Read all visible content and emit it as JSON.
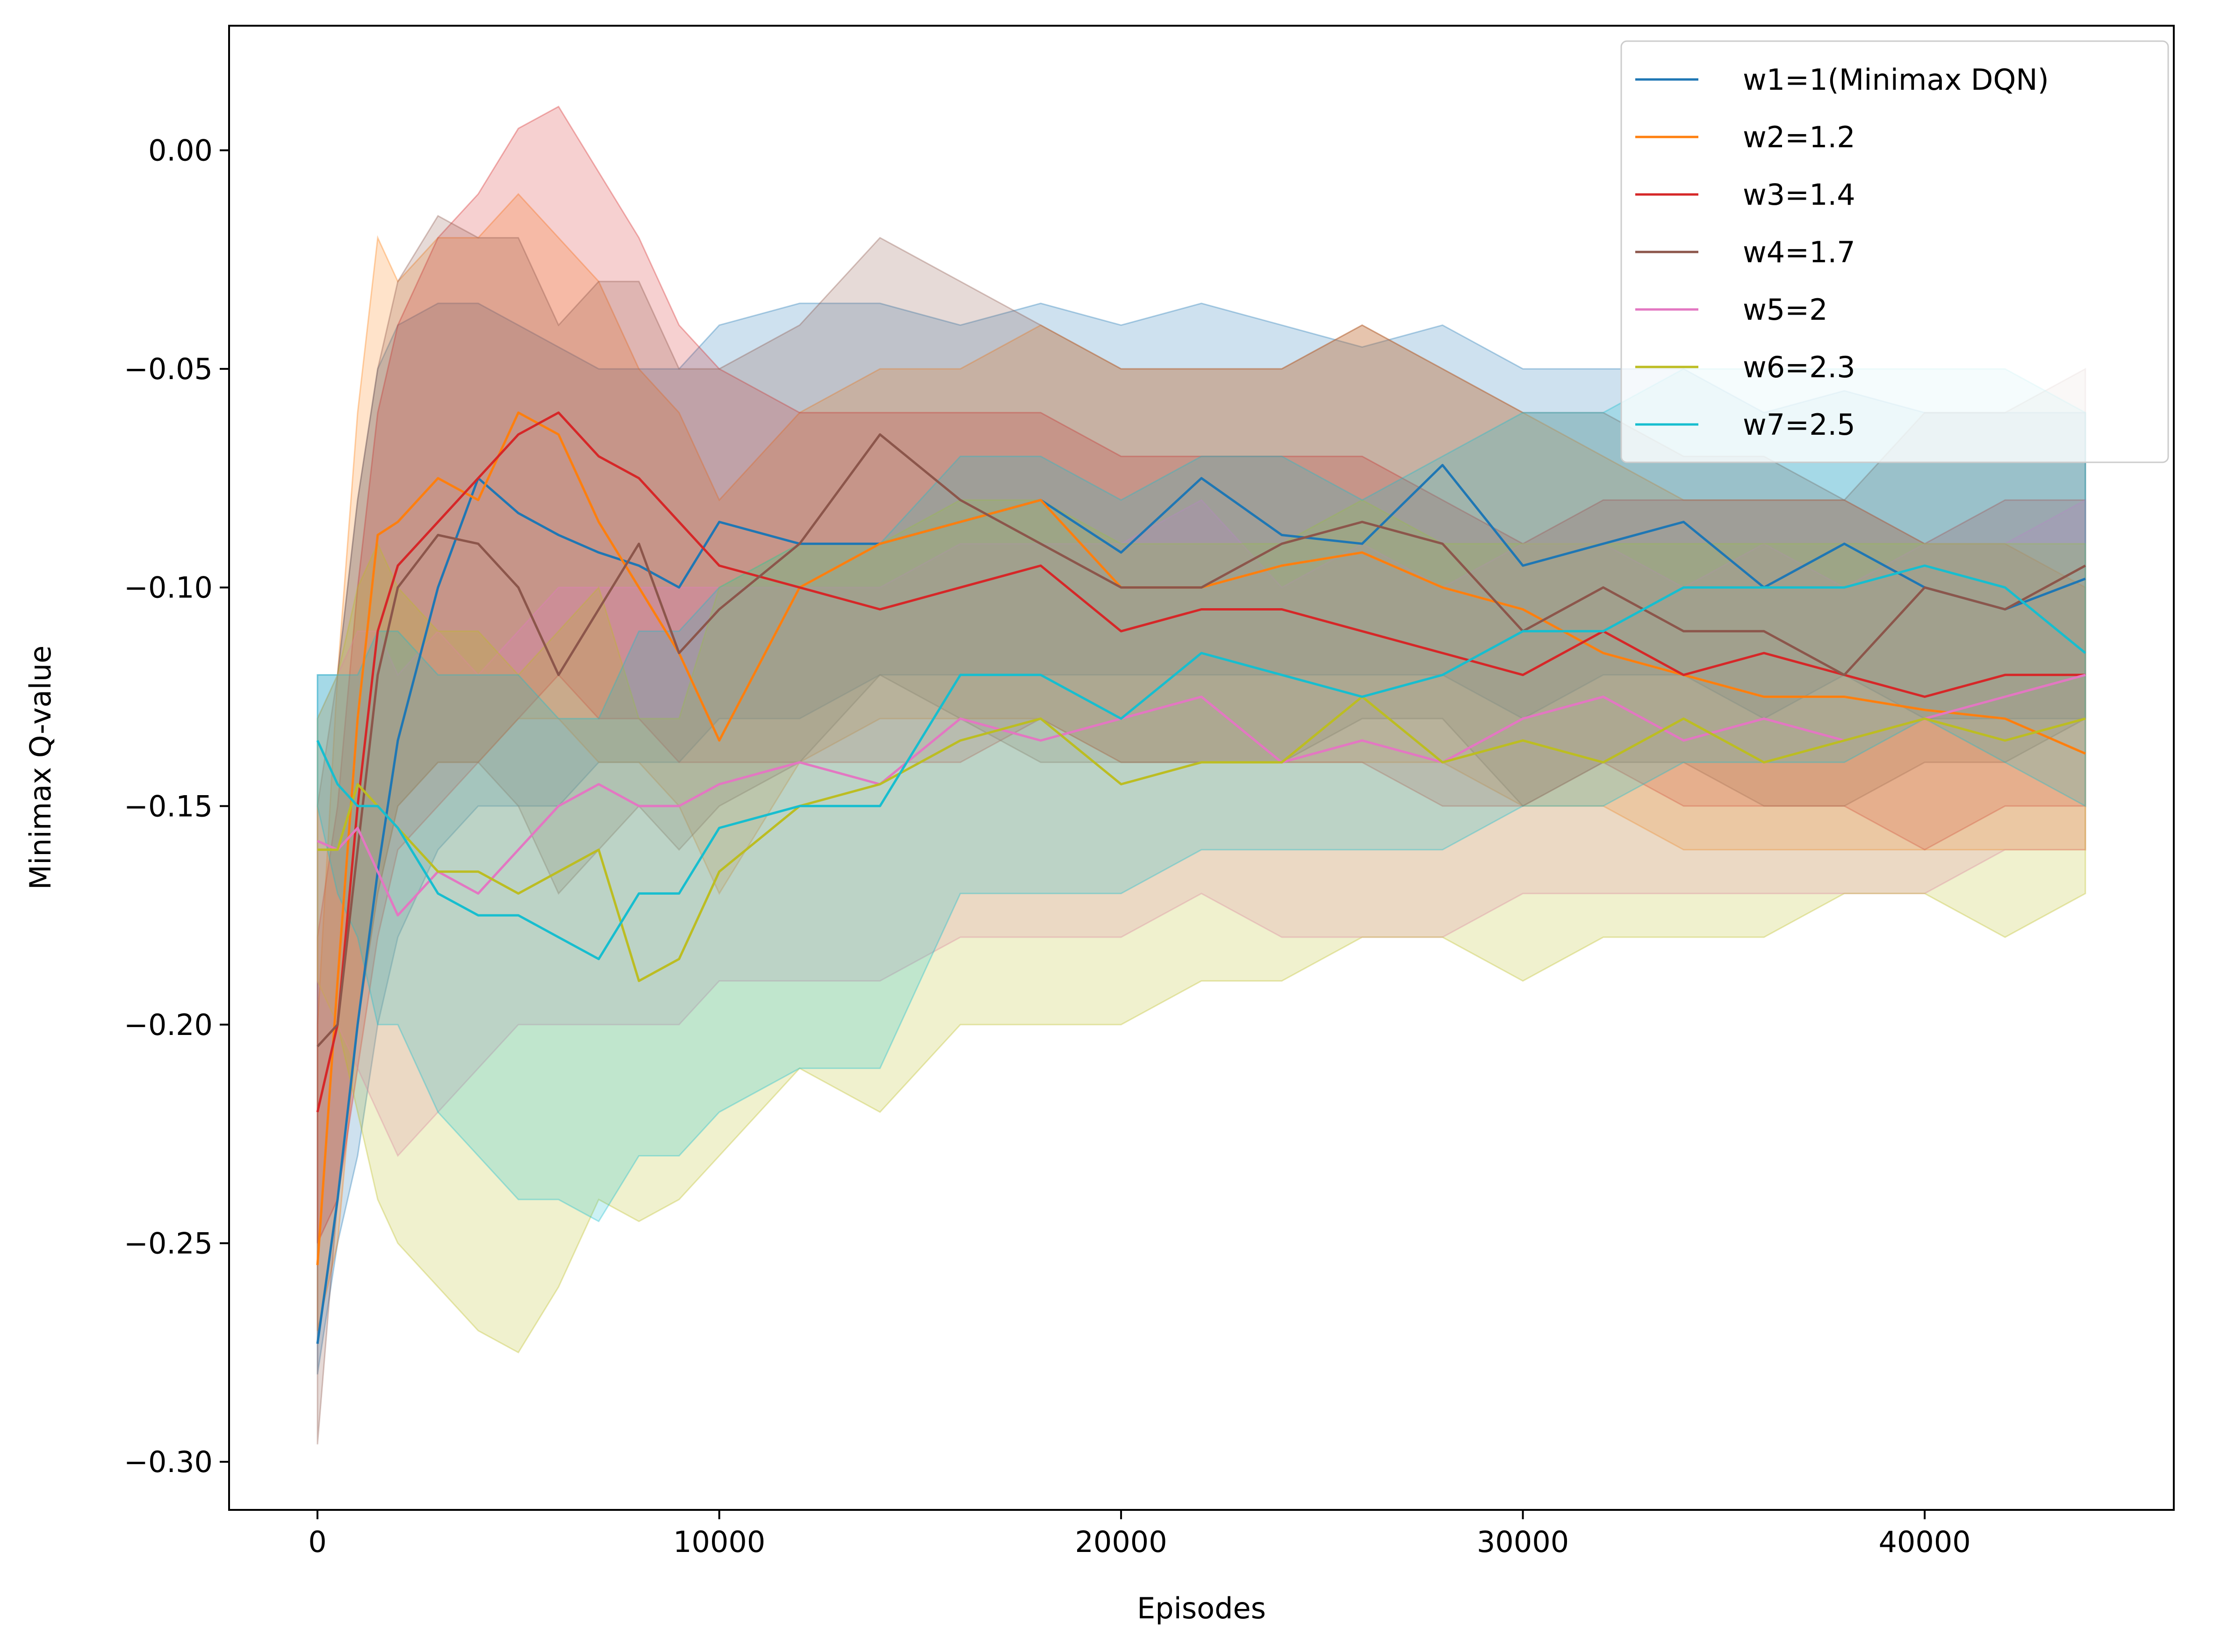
{
  "chart_data": {
    "type": "line",
    "title": "",
    "xlabel": "Episodes",
    "ylabel": "Minimax Q-value",
    "xlim": [
      -2200,
      46200
    ],
    "ylim": [
      -0.311,
      0.0285
    ],
    "xticks": [
      0,
      10000,
      20000,
      30000,
      40000
    ],
    "xtick_labels": [
      "0",
      "10000",
      "20000",
      "30000",
      "40000"
    ],
    "yticks": [
      0.0,
      -0.05,
      -0.1,
      -0.15,
      -0.2,
      -0.25,
      -0.3
    ],
    "ytick_labels": [
      "0.00",
      "−0.05",
      "−0.10",
      "−0.15",
      "−0.20",
      "−0.25",
      "−0.30"
    ],
    "grid": false,
    "legend_position": "top-right",
    "shaded_band": "approximate spread around each series mean",
    "x": [
      0,
      500,
      1000,
      1500,
      2000,
      3000,
      4000,
      5000,
      6000,
      7000,
      8000,
      9000,
      10000,
      12000,
      14000,
      16000,
      18000,
      20000,
      22000,
      24000,
      26000,
      28000,
      30000,
      32000,
      34000,
      36000,
      38000,
      40000,
      42000,
      44000
    ],
    "series": [
      {
        "name": "w1=1(Minimax DQN)",
        "color": "#1f77b4",
        "values": [
          -0.273,
          -0.24,
          -0.2,
          -0.165,
          -0.135,
          -0.1,
          -0.075,
          -0.083,
          -0.088,
          -0.092,
          -0.095,
          -0.1,
          -0.085,
          -0.09,
          -0.09,
          -0.085,
          -0.08,
          -0.092,
          -0.075,
          -0.088,
          -0.09,
          -0.072,
          -0.095,
          -0.09,
          -0.085,
          -0.1,
          -0.09,
          -0.1,
          -0.105,
          -0.098
        ],
        "lower": [
          -0.28,
          -0.25,
          -0.23,
          -0.2,
          -0.18,
          -0.16,
          -0.15,
          -0.15,
          -0.15,
          -0.14,
          -0.14,
          -0.14,
          -0.13,
          -0.13,
          -0.12,
          -0.12,
          -0.12,
          -0.12,
          -0.12,
          -0.12,
          -0.12,
          -0.12,
          -0.13,
          -0.12,
          -0.12,
          -0.13,
          -0.12,
          -0.13,
          -0.13,
          -0.13
        ],
        "upper": [
          -0.12,
          -0.12,
          -0.08,
          -0.05,
          -0.04,
          -0.035,
          -0.035,
          -0.04,
          -0.045,
          -0.05,
          -0.05,
          -0.05,
          -0.04,
          -0.035,
          -0.035,
          -0.04,
          -0.035,
          -0.04,
          -0.035,
          -0.04,
          -0.045,
          -0.04,
          -0.05,
          -0.05,
          -0.05,
          -0.06,
          -0.055,
          -0.06,
          -0.06,
          -0.06
        ]
      },
      {
        "name": "w2=1.2",
        "color": "#ff7f0e",
        "values": [
          -0.255,
          -0.19,
          -0.13,
          -0.088,
          -0.085,
          -0.075,
          -0.08,
          -0.06,
          -0.065,
          -0.085,
          -0.1,
          -0.115,
          -0.135,
          -0.1,
          -0.09,
          -0.085,
          -0.08,
          -0.1,
          -0.1,
          -0.095,
          -0.092,
          -0.1,
          -0.105,
          -0.115,
          -0.12,
          -0.125,
          -0.125,
          -0.128,
          -0.13,
          -0.138
        ],
        "lower": [
          -0.27,
          -0.25,
          -0.2,
          -0.17,
          -0.15,
          -0.14,
          -0.14,
          -0.13,
          -0.13,
          -0.14,
          -0.14,
          -0.15,
          -0.17,
          -0.14,
          -0.13,
          -0.13,
          -0.13,
          -0.14,
          -0.14,
          -0.14,
          -0.14,
          -0.14,
          -0.15,
          -0.15,
          -0.16,
          -0.16,
          -0.16,
          -0.16,
          -0.16,
          -0.16
        ],
        "upper": [
          -0.2,
          -0.12,
          -0.06,
          -0.02,
          -0.03,
          -0.02,
          -0.02,
          -0.01,
          -0.02,
          -0.03,
          -0.05,
          -0.06,
          -0.08,
          -0.06,
          -0.05,
          -0.05,
          -0.04,
          -0.05,
          -0.05,
          -0.05,
          -0.04,
          -0.05,
          -0.06,
          -0.07,
          -0.08,
          -0.08,
          -0.08,
          -0.09,
          -0.09,
          -0.1
        ]
      },
      {
        "name": "w3=1.4",
        "color": "#d62728",
        "values": [
          -0.22,
          -0.2,
          -0.15,
          -0.11,
          -0.095,
          -0.085,
          -0.075,
          -0.065,
          -0.06,
          -0.07,
          -0.075,
          -0.085,
          -0.095,
          -0.1,
          -0.105,
          -0.1,
          -0.095,
          -0.11,
          -0.105,
          -0.105,
          -0.11,
          -0.115,
          -0.12,
          -0.11,
          -0.12,
          -0.115,
          -0.12,
          -0.125,
          -0.12,
          -0.12
        ],
        "lower": [
          -0.25,
          -0.24,
          -0.21,
          -0.18,
          -0.16,
          -0.15,
          -0.14,
          -0.13,
          -0.12,
          -0.13,
          -0.13,
          -0.14,
          -0.14,
          -0.14,
          -0.14,
          -0.14,
          -0.13,
          -0.14,
          -0.14,
          -0.14,
          -0.14,
          -0.15,
          -0.15,
          -0.14,
          -0.15,
          -0.15,
          -0.15,
          -0.16,
          -0.15,
          -0.15
        ],
        "upper": [
          -0.18,
          -0.15,
          -0.1,
          -0.06,
          -0.04,
          -0.02,
          -0.01,
          0.005,
          0.01,
          -0.005,
          -0.02,
          -0.04,
          -0.05,
          -0.06,
          -0.06,
          -0.06,
          -0.06,
          -0.07,
          -0.07,
          -0.07,
          -0.07,
          -0.08,
          -0.09,
          -0.08,
          -0.08,
          -0.08,
          -0.08,
          -0.09,
          -0.08,
          -0.08
        ]
      },
      {
        "name": "w4=1.7",
        "color": "#8c564b",
        "values": [
          -0.205,
          -0.2,
          -0.16,
          -0.12,
          -0.1,
          -0.088,
          -0.09,
          -0.1,
          -0.12,
          -0.105,
          -0.09,
          -0.115,
          -0.105,
          -0.09,
          -0.065,
          -0.08,
          -0.09,
          -0.1,
          -0.1,
          -0.09,
          -0.085,
          -0.09,
          -0.11,
          -0.1,
          -0.11,
          -0.11,
          -0.12,
          -0.1,
          -0.105,
          -0.095
        ],
        "lower": [
          -0.296,
          -0.24,
          -0.2,
          -0.17,
          -0.15,
          -0.14,
          -0.14,
          -0.15,
          -0.17,
          -0.16,
          -0.15,
          -0.16,
          -0.15,
          -0.14,
          -0.12,
          -0.13,
          -0.14,
          -0.14,
          -0.14,
          -0.14,
          -0.13,
          -0.13,
          -0.15,
          -0.14,
          -0.14,
          -0.15,
          -0.15,
          -0.14,
          -0.14,
          -0.13
        ],
        "upper": [
          -0.15,
          -0.12,
          -0.08,
          -0.05,
          -0.03,
          -0.015,
          -0.02,
          -0.02,
          -0.04,
          -0.03,
          -0.03,
          -0.05,
          -0.05,
          -0.04,
          -0.02,
          -0.03,
          -0.04,
          -0.05,
          -0.05,
          -0.05,
          -0.04,
          -0.05,
          -0.06,
          -0.06,
          -0.07,
          -0.07,
          -0.08,
          -0.06,
          -0.06,
          -0.05
        ]
      },
      {
        "name": "w5=2",
        "color": "#e377c2",
        "values": [
          -0.158,
          -0.16,
          -0.155,
          -0.165,
          -0.175,
          -0.165,
          -0.17,
          -0.16,
          -0.15,
          -0.145,
          -0.15,
          -0.15,
          -0.145,
          -0.14,
          -0.145,
          -0.13,
          -0.135,
          -0.13,
          -0.125,
          -0.14,
          -0.135,
          -0.14,
          -0.13,
          -0.125,
          -0.135,
          -0.13,
          -0.135,
          -0.13,
          -0.125,
          -0.12
        ],
        "lower": [
          -0.19,
          -0.2,
          -0.21,
          -0.22,
          -0.23,
          -0.22,
          -0.21,
          -0.2,
          -0.2,
          -0.2,
          -0.2,
          -0.2,
          -0.19,
          -0.19,
          -0.19,
          -0.18,
          -0.18,
          -0.18,
          -0.17,
          -0.18,
          -0.18,
          -0.18,
          -0.17,
          -0.17,
          -0.17,
          -0.17,
          -0.17,
          -0.17,
          -0.16,
          -0.16
        ],
        "upper": [
          -0.13,
          -0.12,
          -0.11,
          -0.11,
          -0.12,
          -0.11,
          -0.12,
          -0.11,
          -0.1,
          -0.1,
          -0.1,
          -0.1,
          -0.1,
          -0.1,
          -0.1,
          -0.09,
          -0.09,
          -0.09,
          -0.08,
          -0.1,
          -0.09,
          -0.1,
          -0.09,
          -0.09,
          -0.1,
          -0.09,
          -0.1,
          -0.09,
          -0.09,
          -0.08
        ]
      },
      {
        "name": "w6=2.3",
        "color": "#bcbd22",
        "values": [
          -0.16,
          -0.16,
          -0.145,
          -0.15,
          -0.155,
          -0.165,
          -0.165,
          -0.17,
          -0.165,
          -0.16,
          -0.19,
          -0.185,
          -0.165,
          -0.15,
          -0.145,
          -0.135,
          -0.13,
          -0.145,
          -0.14,
          -0.14,
          -0.125,
          -0.14,
          -0.135,
          -0.14,
          -0.13,
          -0.14,
          -0.135,
          -0.13,
          -0.135,
          -0.13
        ],
        "lower": [
          -0.19,
          -0.2,
          -0.22,
          -0.24,
          -0.25,
          -0.26,
          -0.27,
          -0.275,
          -0.26,
          -0.24,
          -0.245,
          -0.24,
          -0.23,
          -0.21,
          -0.22,
          -0.2,
          -0.2,
          -0.2,
          -0.19,
          -0.19,
          -0.18,
          -0.18,
          -0.19,
          -0.18,
          -0.18,
          -0.18,
          -0.17,
          -0.17,
          -0.18,
          -0.17
        ],
        "upper": [
          -0.13,
          -0.12,
          -0.1,
          -0.09,
          -0.1,
          -0.11,
          -0.11,
          -0.12,
          -0.11,
          -0.1,
          -0.13,
          -0.13,
          -0.1,
          -0.09,
          -0.09,
          -0.08,
          -0.08,
          -0.09,
          -0.09,
          -0.09,
          -0.08,
          -0.09,
          -0.09,
          -0.09,
          -0.09,
          -0.09,
          -0.09,
          -0.09,
          -0.09,
          -0.09
        ]
      },
      {
        "name": "w7=2.5",
        "color": "#17becf",
        "values": [
          -0.135,
          -0.145,
          -0.15,
          -0.15,
          -0.155,
          -0.17,
          -0.175,
          -0.175,
          -0.18,
          -0.185,
          -0.17,
          -0.17,
          -0.155,
          -0.15,
          -0.15,
          -0.12,
          -0.12,
          -0.13,
          -0.115,
          -0.12,
          -0.125,
          -0.12,
          -0.11,
          -0.11,
          -0.1,
          -0.1,
          -0.1,
          -0.095,
          -0.1,
          -0.115
        ],
        "lower": [
          -0.15,
          -0.17,
          -0.18,
          -0.2,
          -0.2,
          -0.22,
          -0.23,
          -0.24,
          -0.24,
          -0.245,
          -0.23,
          -0.23,
          -0.22,
          -0.21,
          -0.21,
          -0.17,
          -0.17,
          -0.17,
          -0.16,
          -0.16,
          -0.16,
          -0.16,
          -0.15,
          -0.15,
          -0.14,
          -0.14,
          -0.14,
          -0.13,
          -0.14,
          -0.15
        ],
        "upper": [
          -0.12,
          -0.12,
          -0.12,
          -0.11,
          -0.11,
          -0.12,
          -0.12,
          -0.12,
          -0.13,
          -0.13,
          -0.11,
          -0.11,
          -0.1,
          -0.09,
          -0.09,
          -0.07,
          -0.07,
          -0.08,
          -0.07,
          -0.07,
          -0.08,
          -0.07,
          -0.06,
          -0.06,
          -0.05,
          -0.05,
          -0.05,
          -0.05,
          -0.05,
          -0.06
        ]
      }
    ]
  }
}
